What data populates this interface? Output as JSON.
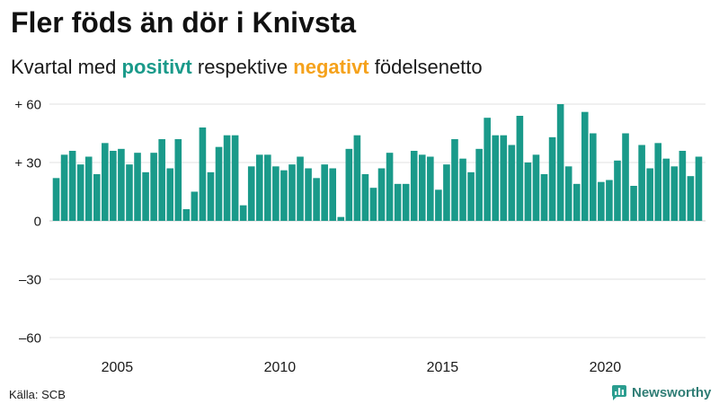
{
  "chart_data": {
    "type": "bar",
    "title": "Fler föds än dör i Knivsta",
    "subtitle_parts": [
      "Kvartal med",
      "positivt",
      "respektive",
      "negativt",
      "födelsenetto"
    ],
    "colors": {
      "positive": "#1a9a8a",
      "negative": "#f5a21c"
    },
    "xlim": [
      2003,
      2023
    ],
    "ylim": [
      -60,
      60
    ],
    "yticks": [
      60,
      30,
      0,
      -30,
      -60
    ],
    "ytick_labels": [
      "+ 60",
      "+ 30",
      "0",
      "–30",
      "–60"
    ],
    "xtick_labels": [
      "2005",
      "2010",
      "2015",
      "2020"
    ],
    "grid": true,
    "quarters": [
      {
        "year": 2003,
        "values": [
          22,
          34,
          36,
          29
        ]
      },
      {
        "year": 2004,
        "values": [
          33,
          24,
          40,
          36
        ]
      },
      {
        "year": 2005,
        "values": [
          37,
          29,
          35,
          25
        ]
      },
      {
        "year": 2006,
        "values": [
          35,
          42,
          27,
          42
        ]
      },
      {
        "year": 2007,
        "values": [
          6,
          15,
          48,
          25
        ]
      },
      {
        "year": 2008,
        "values": [
          38,
          44,
          44,
          8
        ]
      },
      {
        "year": 2009,
        "values": [
          28,
          34,
          34,
          28
        ]
      },
      {
        "year": 2010,
        "values": [
          26,
          29,
          33,
          27
        ]
      },
      {
        "year": 2011,
        "values": [
          22,
          29,
          27,
          2
        ]
      },
      {
        "year": 2012,
        "values": [
          37,
          44,
          24,
          17
        ]
      },
      {
        "year": 2013,
        "values": [
          27,
          35,
          19,
          19
        ]
      },
      {
        "year": 2014,
        "values": [
          36,
          34,
          33,
          16
        ]
      },
      {
        "year": 2015,
        "values": [
          29,
          42,
          32,
          25
        ]
      },
      {
        "year": 2016,
        "values": [
          37,
          53,
          44,
          44
        ]
      },
      {
        "year": 2017,
        "values": [
          39,
          54,
          30,
          34
        ]
      },
      {
        "year": 2018,
        "values": [
          24,
          43,
          60,
          28
        ]
      },
      {
        "year": 2019,
        "values": [
          19,
          56,
          45,
          20
        ]
      },
      {
        "year": 2020,
        "values": [
          21,
          31,
          45,
          18
        ]
      },
      {
        "year": 2021,
        "values": [
          39,
          27,
          40,
          32
        ]
      },
      {
        "year": 2022,
        "values": [
          28,
          36,
          23,
          33
        ]
      }
    ]
  },
  "source": {
    "text": "Källa: SCB"
  },
  "logo": {
    "text": "Newsworthy",
    "icon": "newsworthy-logo-icon",
    "color": "#2f7d75"
  }
}
